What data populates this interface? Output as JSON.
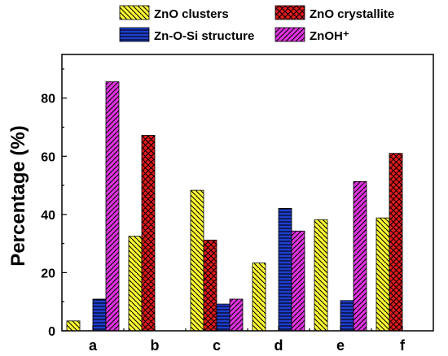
{
  "chart_data": {
    "type": "bar",
    "categories": [
      "a",
      "b",
      "c",
      "d",
      "e",
      "f"
    ],
    "ylabel": "Percentage (%)",
    "xlabel": "",
    "ylim": [
      0,
      95
    ],
    "yticks": [
      0,
      20,
      40,
      60,
      80
    ],
    "legend_position": "top",
    "series": [
      {
        "name": "ZnO clusters",
        "color": "#ffff33",
        "pattern": "diagonal-down",
        "values": [
          3.4,
          32.5,
          48.3,
          23.3,
          38.2,
          38.8
        ]
      },
      {
        "name": "ZnO crystallite",
        "color": "#e31a1c",
        "pattern": "crosshatch",
        "values": [
          0,
          67.2,
          31.2,
          0,
          0,
          61.0
        ]
      },
      {
        "name": "Zn-O-Si structure",
        "color": "#1f3fcf",
        "pattern": "horizontal",
        "values": [
          10.9,
          0,
          9.2,
          42.1,
          10.4,
          0
        ]
      },
      {
        "name": "ZnOH⁺",
        "color": "#e033e0",
        "pattern": "diagonal-up",
        "values": [
          85.6,
          0,
          10.9,
          34.3,
          51.3,
          0
        ]
      }
    ]
  }
}
